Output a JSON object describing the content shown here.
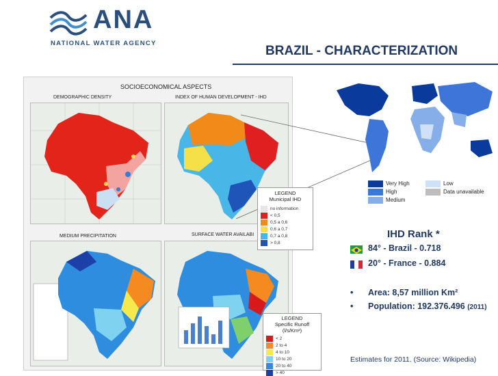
{
  "header": {
    "logo_text": "ANA",
    "logo_subtitle": "NATIONAL WATER AGENCY",
    "slide_title": "BRAZIL - CHARACTERIZATION"
  },
  "maps": {
    "section_title": "SOCIOECONOMICAL ASPECTS",
    "labels": {
      "demographic": "DEMOGRAPHIC DENSITY",
      "ihd": "INDEX OF HUMAN DEVELOPMENT - IHD",
      "precipitation": "MEDIUM PRECIPITATION",
      "surface_water": "SURFACE WATER AVAILABI"
    },
    "legend_ihd": {
      "title": "LEGEND",
      "subtitle": "Municipal IHD",
      "items": [
        {
          "label": "no information",
          "color": "#e6e6e6"
        },
        {
          "label": "< 0,5",
          "color": "#e02020"
        },
        {
          "label": "0,5 a 0,6",
          "color": "#f28a1a"
        },
        {
          "label": "0,6 a 0,7",
          "color": "#f5e04a"
        },
        {
          "label": "0,7 a 0,8",
          "color": "#48b7e8"
        },
        {
          "label": "> 0,8",
          "color": "#1f55b8"
        }
      ]
    },
    "legend_runoff": {
      "title": "LEGEND",
      "subtitle": "Specific Runoff (l/s/Km²)",
      "items": [
        {
          "label": "< 2",
          "color": "#d7191c"
        },
        {
          "label": "2 to 4",
          "color": "#f48a20"
        },
        {
          "label": "4 to 10",
          "color": "#f6e94c"
        },
        {
          "label": "10 to 20",
          "color": "#7fd2f0"
        },
        {
          "label": "20 to 40",
          "color": "#2f8de0"
        },
        {
          "label": "> 40",
          "color": "#1c3fa8"
        }
      ]
    }
  },
  "world_map": {
    "legend": {
      "very_high": "Very High",
      "high": "High",
      "medium": "Medium",
      "low": "Low",
      "unavailable": "Data unavailable"
    },
    "colors": {
      "very_high": "#0a3a9c",
      "high": "#3d76d8",
      "medium": "#86aee8",
      "low": "#cfe0f7",
      "unavailable": "#bdbdbd"
    }
  },
  "ihd_rank": {
    "title": "IHD Rank *",
    "brazil": "84° - Brazil - 0.718",
    "france": "20° - France - 0.884"
  },
  "facts": {
    "area": "Area: 8,57 million Km²",
    "population": "Population: 192.376.496",
    "population_year": "(2011)"
  },
  "source_note": "Estimates for 2011. (Source: Wikipedia)"
}
